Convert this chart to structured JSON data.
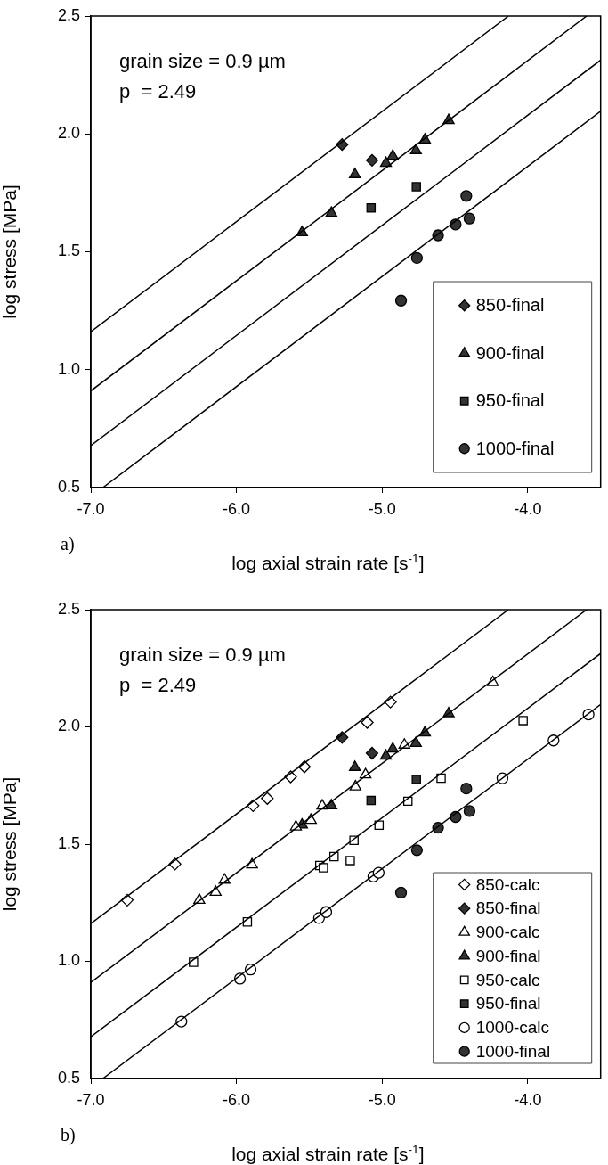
{
  "chart_data": [
    {
      "type": "scatter",
      "xlabel": "log axial strain rate [s$^{-1}$]",
      "ylabel": "log stress [MPa]",
      "xlim": [
        -7,
        -3.5
      ],
      "ylim": [
        0.5,
        2.5
      ],
      "xticks": [
        {
          "value": -7,
          "label": "-7.0"
        },
        {
          "value": -6,
          "label": "-6.0"
        },
        {
          "value": -5,
          "label": "-5.0"
        },
        {
          "value": -4,
          "label": "-4.0"
        }
      ],
      "yticks": [
        {
          "value": 0.5,
          "label": "0.5"
        },
        {
          "value": 1,
          "label": "1.0"
        },
        {
          "value": 1.5,
          "label": "1.5"
        },
        {
          "value": 2,
          "label": "2.0"
        },
        {
          "value": 2.5,
          "label": "2.5"
        }
      ],
      "grid": false,
      "legend": "bottom right",
      "annotations": [
        "grain size = 0.9 µm",
        "p  = 2.49",
        "a)"
      ],
      "series": [
        {
          "type": "line",
          "color": "#000000",
          "x": [
            -7,
            -4.133
          ],
          "values": [
            1.161,
            2.5
          ]
        },
        {
          "type": "line",
          "color": "#000000",
          "x": [
            -7,
            -3.596
          ],
          "values": [
            0.91,
            2.5
          ]
        },
        {
          "type": "line",
          "color": "#000000",
          "x": [
            -7,
            -3.5
          ],
          "values": [
            0.678,
            2.313
          ]
        },
        {
          "type": "line",
          "color": "#000000",
          "x": [
            -6.917,
            -3.5
          ],
          "values": [
            0.5,
            2.096
          ]
        },
        {
          "name": "850-final",
          "marker": "diamond",
          "color": "#333333",
          "x": [
            -5.275,
            -5.069
          ],
          "values": [
            1.955,
            1.888
          ]
        },
        {
          "name": "900-final",
          "marker": "triangle",
          "color": "#333333",
          "x": [
            -5.55,
            -5.348,
            -5.187,
            -4.974,
            -4.927,
            -4.768,
            -4.706,
            -4.543
          ],
          "values": [
            1.582,
            1.664,
            1.828,
            1.876,
            1.906,
            1.93,
            1.975,
            2.057
          ]
        },
        {
          "name": "950-final",
          "marker": "square",
          "color": "#333333",
          "x": [
            -5.076,
            -4.765
          ],
          "values": [
            1.686,
            1.776
          ]
        },
        {
          "name": "1000-final",
          "marker": "circle",
          "color": "#333333",
          "x": [
            -4.87,
            -4.761,
            -4.616,
            -4.495,
            -4.422,
            -4.4
          ],
          "values": [
            1.293,
            1.474,
            1.57,
            1.616,
            1.737,
            1.641
          ]
        }
      ]
    },
    {
      "type": "scatter",
      "xlabel": "log axial strain rate [s$^{-1}$]",
      "ylabel": "log stress [MPa]",
      "xlim": [
        -7,
        -3.5
      ],
      "ylim": [
        0.5,
        2.5
      ],
      "xticks": [
        {
          "value": -7,
          "label": "-7.0"
        },
        {
          "value": -6,
          "label": "-6.0"
        },
        {
          "value": -5,
          "label": "-5.0"
        },
        {
          "value": -4,
          "label": "-4.0"
        }
      ],
      "yticks": [
        {
          "value": 0.5,
          "label": "0.5"
        },
        {
          "value": 1,
          "label": "1.0"
        },
        {
          "value": 1.5,
          "label": "1.5"
        },
        {
          "value": 2,
          "label": "2.0"
        },
        {
          "value": 2.5,
          "label": "2.5"
        }
      ],
      "grid": false,
      "legend": "bottom right",
      "annotations": [
        "grain size = 0.9 µm",
        "p  = 2.49",
        "b)"
      ],
      "series": [
        {
          "type": "line",
          "color": "#000000",
          "x": [
            -7,
            -4.133
          ],
          "values": [
            1.161,
            2.5
          ]
        },
        {
          "type": "line",
          "color": "#000000",
          "x": [
            -7,
            -3.596
          ],
          "values": [
            0.91,
            2.5
          ]
        },
        {
          "type": "line",
          "color": "#000000",
          "x": [
            -7,
            -3.5
          ],
          "values": [
            0.678,
            2.313
          ]
        },
        {
          "type": "line",
          "color": "#000000",
          "x": [
            -6.917,
            -3.5
          ],
          "values": [
            0.5,
            2.096
          ]
        },
        {
          "name": "850-calc",
          "marker": "diamond",
          "color": "#ffffff",
          "x": [
            -6.75,
            -6.422,
            -5.886,
            -5.788,
            -5.628,
            -5.533,
            -5.102,
            -4.943
          ],
          "values": [
            1.261,
            1.415,
            1.664,
            1.695,
            1.787,
            1.83,
            2.019,
            2.106
          ]
        },
        {
          "name": "850-final",
          "marker": "diamond",
          "color": "#333333",
          "x": [
            -5.275,
            -5.069
          ],
          "values": [
            1.955,
            1.888
          ]
        },
        {
          "name": "900-calc",
          "marker": "triangle",
          "color": "#ffffff",
          "x": [
            -6.255,
            -6.143,
            -6.082,
            -5.893,
            -5.592,
            -5.489,
            -5.411,
            -5.183,
            -5.114,
            -4.847,
            -4.24
          ],
          "values": [
            1.261,
            1.295,
            1.347,
            1.412,
            1.574,
            1.602,
            1.663,
            1.745,
            1.796,
            1.923,
            2.19
          ]
        },
        {
          "name": "900-final",
          "marker": "triangle",
          "color": "#333333",
          "x": [
            -5.55,
            -5.348,
            -5.187,
            -4.974,
            -4.927,
            -4.768,
            -4.706,
            -4.543
          ],
          "values": [
            1.582,
            1.664,
            1.828,
            1.876,
            1.906,
            1.93,
            1.975,
            2.057
          ]
        },
        {
          "name": "950-calc",
          "marker": "square",
          "color": "#ffffff",
          "x": [
            -6.295,
            -5.925,
            -5.428,
            -5.403,
            -5.33,
            -5.219,
            -5.193,
            -5.021,
            -4.823,
            -4.595,
            -4.032
          ],
          "values": [
            0.996,
            1.168,
            1.409,
            1.399,
            1.447,
            1.43,
            1.516,
            1.581,
            1.683,
            1.781,
            2.027
          ]
        },
        {
          "name": "950-final",
          "marker": "square",
          "color": "#333333",
          "x": [
            -5.076,
            -4.765
          ],
          "values": [
            1.686,
            1.776
          ]
        },
        {
          "name": "1000-calc",
          "marker": "circle",
          "color": "#ffffff",
          "x": [
            -6.378,
            -5.976,
            -5.903,
            -5.433,
            -5.384,
            -5.06,
            -5.024,
            -4.174,
            -3.823,
            -3.583
          ],
          "values": [
            0.743,
            0.926,
            0.965,
            1.185,
            1.21,
            1.362,
            1.378,
            1.781,
            1.942,
            2.053
          ]
        },
        {
          "name": "1000-final",
          "marker": "circle",
          "color": "#333333",
          "x": [
            -4.87,
            -4.761,
            -4.616,
            -4.495,
            -4.422,
            -4.4
          ],
          "values": [
            1.293,
            1.474,
            1.57,
            1.616,
            1.737,
            1.641
          ]
        }
      ]
    }
  ]
}
